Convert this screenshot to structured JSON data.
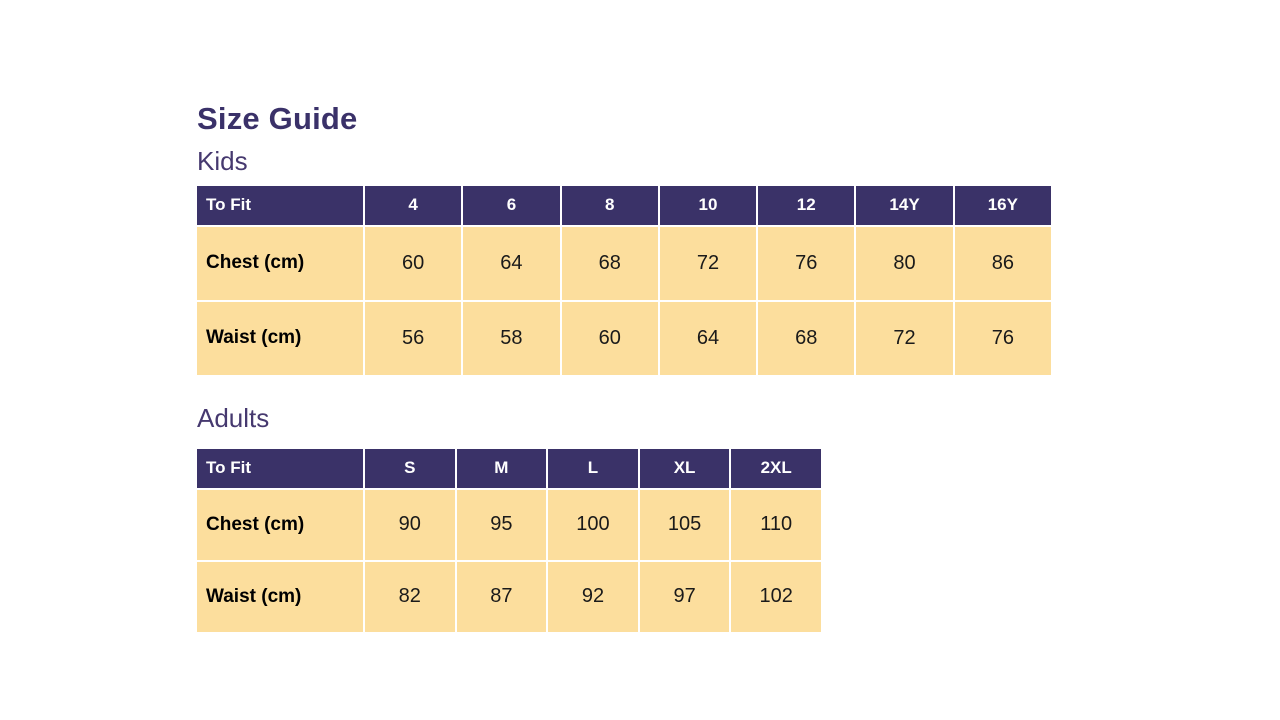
{
  "page": {
    "title": "Size Guide"
  },
  "colors": {
    "header_bg": "#3A3268",
    "header_text": "#FFFFFF",
    "cell_bg": "#FCDE9D",
    "cell_text": "#1A1A1A",
    "title_color": "#3A3169",
    "heading_color": "#46396F",
    "grid_line": "#FFFFFF"
  },
  "tables": [
    {
      "id": "kids",
      "heading": "Kids",
      "label_col_width": 168,
      "columns": [
        "To Fit",
        "4",
        "6",
        "8",
        "10",
        "12",
        "14Y",
        "16Y"
      ],
      "rows": [
        {
          "label": "Chest (cm)",
          "values": [
            "60",
            "64",
            "68",
            "72",
            "76",
            "80",
            "86"
          ]
        },
        {
          "label": "Waist (cm)",
          "values": [
            "56",
            "58",
            "60",
            "64",
            "68",
            "72",
            "76"
          ]
        }
      ]
    },
    {
      "id": "adults",
      "heading": "Adults",
      "label_col_width": 168,
      "columns": [
        "To Fit",
        "S",
        "M",
        "L",
        "XL",
        "2XL"
      ],
      "rows": [
        {
          "label": "Chest (cm)",
          "values": [
            "90",
            "95",
            "100",
            "105",
            "110"
          ]
        },
        {
          "label": "Waist (cm)",
          "values": [
            "82",
            "87",
            "92",
            "97",
            "102"
          ]
        }
      ]
    }
  ]
}
